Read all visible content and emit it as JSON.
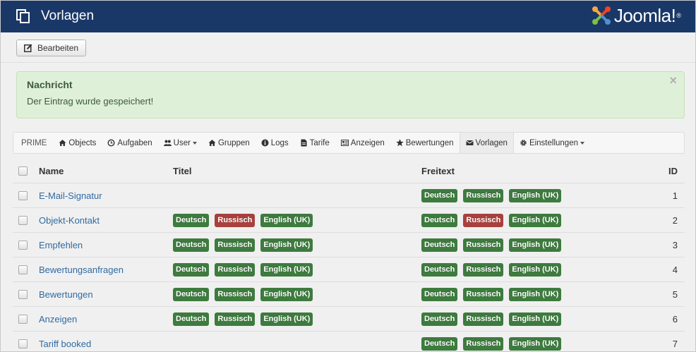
{
  "header": {
    "title": "Vorlagen",
    "logo_text": "Joomla!",
    "logo_reg": "®",
    "bg_color": "#1a3867"
  },
  "toolbar": {
    "edit_label": "Bearbeiten"
  },
  "alert": {
    "heading": "Nachricht",
    "message": "Der Eintrag wurde gespeichert!",
    "close": "×"
  },
  "nav": {
    "brand": "PRIME",
    "items": [
      {
        "label": "Objects",
        "icon": "home-icon"
      },
      {
        "label": "Aufgaben",
        "icon": "clock-icon"
      },
      {
        "label": "User",
        "icon": "users-icon",
        "dropdown": true
      },
      {
        "label": "Gruppen",
        "icon": "home-icon"
      },
      {
        "label": "Logs",
        "icon": "info-icon"
      },
      {
        "label": "Tarife",
        "icon": "file-icon"
      },
      {
        "label": "Anzeigen",
        "icon": "newspaper-icon"
      },
      {
        "label": "Bewertungen",
        "icon": "star-icon"
      },
      {
        "label": "Vorlagen",
        "icon": "envelope-icon",
        "active": true
      },
      {
        "label": "Einstellungen",
        "icon": "gear-icon",
        "dropdown": true
      }
    ]
  },
  "table": {
    "columns": {
      "name": "Name",
      "titel": "Titel",
      "freitext": "Freitext",
      "id": "ID"
    },
    "badge_labels": [
      "Deutsch",
      "Russisch",
      "English (UK)"
    ],
    "colors": {
      "success": "#3d7b3e",
      "danger": "#a8413d"
    },
    "rows": [
      {
        "name": "E-Mail-Signatur",
        "id": "1",
        "titel": [],
        "freitext": [
          "success",
          "success",
          "success"
        ]
      },
      {
        "name": "Objekt-Kontakt",
        "id": "2",
        "titel": [
          "success",
          "danger",
          "success"
        ],
        "freitext": [
          "success",
          "danger",
          "success"
        ]
      },
      {
        "name": "Empfehlen",
        "id": "3",
        "titel": [
          "success",
          "success",
          "success"
        ],
        "freitext": [
          "success",
          "success",
          "success"
        ]
      },
      {
        "name": "Bewertungsanfragen",
        "id": "4",
        "titel": [
          "success",
          "success",
          "success"
        ],
        "freitext": [
          "success",
          "success",
          "success"
        ]
      },
      {
        "name": "Bewertungen",
        "id": "5",
        "titel": [
          "success",
          "success",
          "success"
        ],
        "freitext": [
          "success",
          "success",
          "success"
        ]
      },
      {
        "name": "Anzeigen",
        "id": "6",
        "titel": [
          "success",
          "success",
          "success"
        ],
        "freitext": [
          "success",
          "success",
          "success"
        ]
      },
      {
        "name": "Tariff booked",
        "id": "7",
        "titel": [],
        "freitext": [
          "success",
          "success",
          "success"
        ]
      }
    ]
  }
}
